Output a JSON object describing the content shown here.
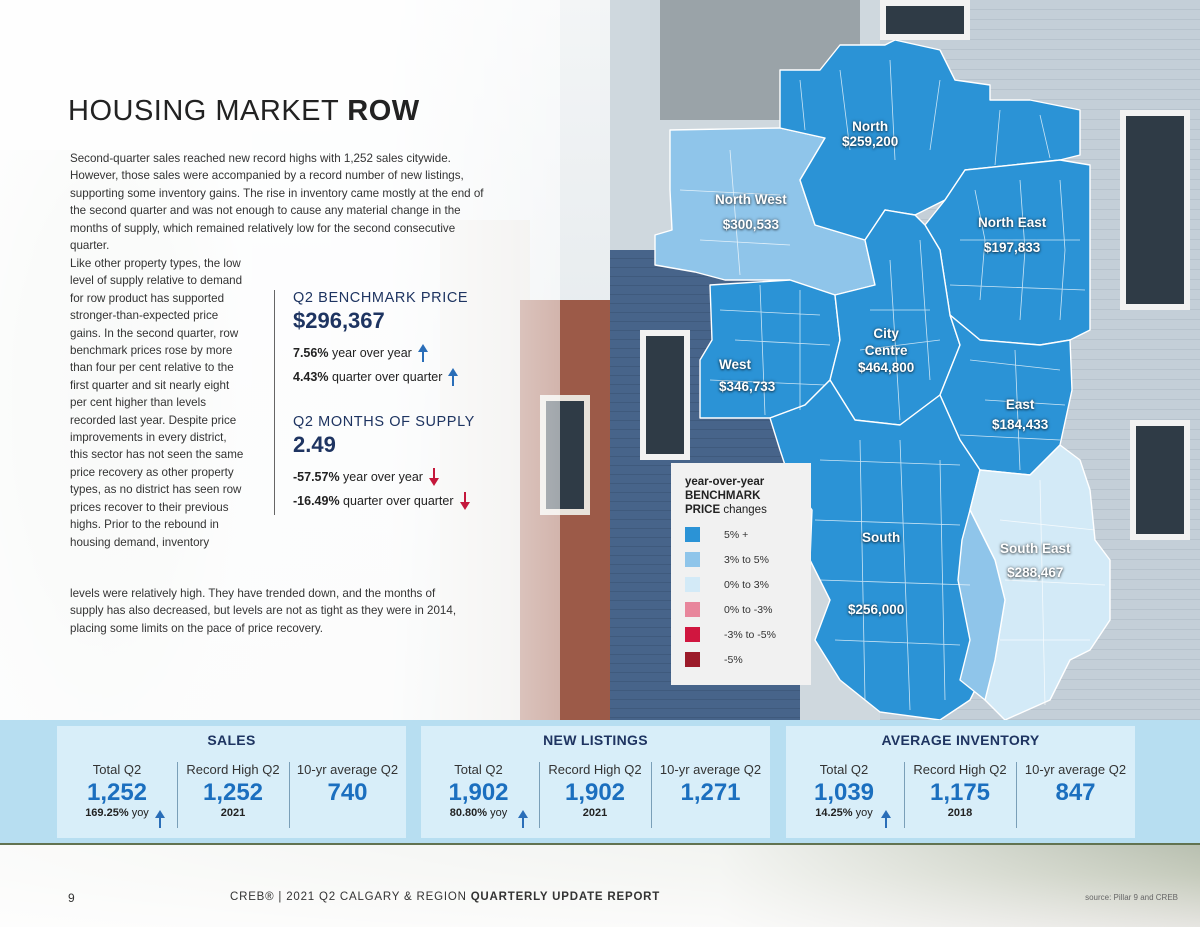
{
  "title": {
    "light": "HOUSING MARKET ",
    "bold": "ROW"
  },
  "intro": "Second-quarter sales reached new record highs with 1,252 sales citywide. However, those sales were accompanied by a record number of new listings, supporting some inventory gains. The rise in inventory came mostly at the end of the second quarter and was not enough to cause any material change in the months of supply, which remained relatively low for the second consecutive quarter.",
  "para2": "Like other property types, the low level of supply relative to demand for row product has supported stronger-than-expected price gains. In the second quarter, row benchmark prices rose by more than four per cent relative to the first quarter and sit nearly eight per cent higher than levels recorded last year. Despite price improvements in every district, this sector has not seen the same price recovery as other property types, as no district has seen row prices recover to their previous highs. Prior to the rebound in housing demand, inventory",
  "para2_tail": "levels were relatively high. They have trended down, and the months of supply has also decreased, but levels are not as tight as they were in 2014, placing some limits on the pace of price recovery.",
  "benchmark": {
    "heading": "Q2 BENCHMARK PRICE",
    "value": "$296,367",
    "yoy_pct": "7.56%",
    "yoy_text": "year over year",
    "qoq_pct": "4.43%",
    "qoq_text": "quarter over quarter"
  },
  "supply": {
    "heading": "Q2 MONTHS OF SUPPLY",
    "value": "2.49",
    "yoy_pct": "-57.57%",
    "yoy_text": "year over year",
    "qoq_pct": "-16.49%",
    "qoq_text": "quarter over quarter"
  },
  "districts": [
    {
      "name": "North",
      "price": "$259,200"
    },
    {
      "name": "North West",
      "price": "$300,533"
    },
    {
      "name": "North East",
      "price": "$197,833"
    },
    {
      "name": "City Centre",
      "price": "$464,800"
    },
    {
      "name": "West",
      "price": "$346,733"
    },
    {
      "name": "East",
      "price": "$184,433"
    },
    {
      "name": "South",
      "price": "$256,000"
    },
    {
      "name": "South East",
      "price": "$288,467"
    }
  ],
  "legend": {
    "title_line1": "year-over-year",
    "title_line2": "BENCHMARK",
    "title_line3a": "PRICE",
    "title_line3b": " changes",
    "items": [
      {
        "label": "5% +",
        "color": "#2b93d6"
      },
      {
        "label": "3% to 5%",
        "color": "#8fc5ea"
      },
      {
        "label": "0% to 3%",
        "color": "#d3eaf7"
      },
      {
        "label": "0% to -3%",
        "color": "#e8869c"
      },
      {
        "label": "-3% to -5%",
        "color": "#d0163f"
      },
      {
        "label": "-5%",
        "color": "#9c1b2a"
      }
    ]
  },
  "cards": [
    {
      "title": "SALES",
      "total_label": "Total Q2",
      "total_value": "1,252",
      "yoy_pct": "169.25%",
      "yoy_text": "yoy",
      "record_label": "Record High Q2",
      "record_value": "1,252",
      "record_year": "2021",
      "avg_label": "10-yr average Q2",
      "avg_value": "740"
    },
    {
      "title": "NEW LISTINGS",
      "total_label": "Total Q2",
      "total_value": "1,902",
      "yoy_pct": "80.80%",
      "yoy_text": "yoy",
      "record_label": "Record High Q2",
      "record_value": "1,902",
      "record_year": "2021",
      "avg_label": "10-yr average Q2",
      "avg_value": "1,271"
    },
    {
      "title": "AVERAGE INVENTORY",
      "total_label": "Total Q2",
      "total_value": "1,039",
      "yoy_pct": "14.25%",
      "yoy_text": "yoy",
      "record_label": "Record High Q2",
      "record_value": "1,175",
      "record_year": "2018",
      "avg_label": "10-yr average Q2",
      "avg_value": "847"
    }
  ],
  "footer": {
    "page": "9",
    "report_prefix": "CREB® | 2021 Q2 CALGARY & REGION ",
    "report_bold": "QUARTERLY UPDATE REPORT",
    "source": "source: Pillar 9 and CREB"
  },
  "colors": {
    "navy": "#1e3461",
    "value_blue": "#1b6fbf",
    "up_arrow": "#2a6eb8",
    "down_arrow": "#c4183c",
    "band": "#b7def1",
    "card": "#d8eef9"
  }
}
